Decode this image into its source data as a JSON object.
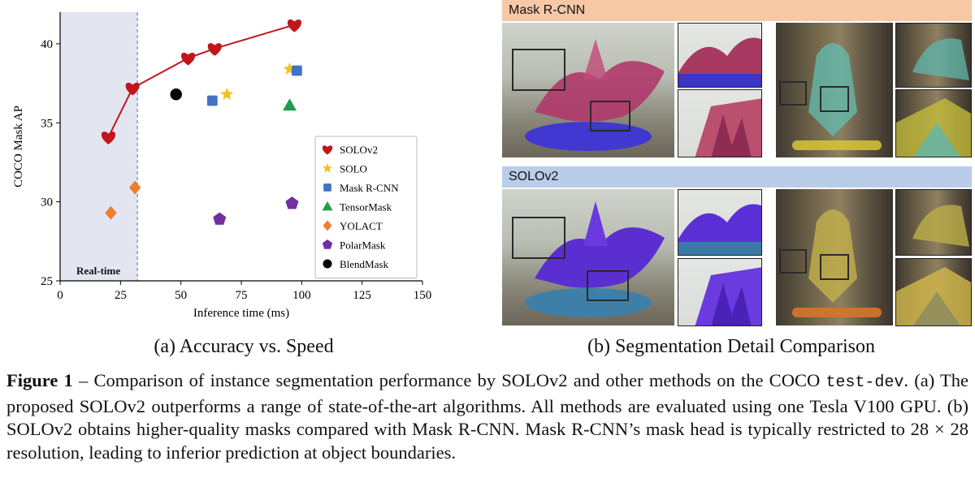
{
  "chart_data": {
    "type": "scatter",
    "xlabel": "Inference time (ms)",
    "ylabel": "COCO Mask AP",
    "xlim": [
      0,
      150
    ],
    "ylim": [
      25,
      42
    ],
    "xticks": [
      0,
      25,
      50,
      75,
      100,
      125,
      150
    ],
    "yticks": [
      25,
      30,
      35,
      40
    ],
    "realtime_region": {
      "label": "Real-time",
      "x_max": 32
    },
    "legend_position": "right",
    "series": [
      {
        "name": "SOLOv2",
        "marker": "heart",
        "color": "#c0161c",
        "connected": true,
        "points": [
          [
            20,
            34.1
          ],
          [
            30,
            37.2
          ],
          [
            53,
            39.1
          ],
          [
            64,
            39.7
          ],
          [
            97,
            41.2
          ]
        ]
      },
      {
        "name": "SOLO",
        "marker": "star",
        "color": "#f1c21b",
        "points": [
          [
            69,
            36.8
          ],
          [
            95,
            38.4
          ]
        ]
      },
      {
        "name": "Mask R-CNN",
        "marker": "square",
        "color": "#4472c4",
        "points": [
          [
            63,
            36.4
          ],
          [
            98,
            38.3
          ]
        ]
      },
      {
        "name": "TensorMask",
        "marker": "triangle",
        "color": "#1e9e4a",
        "points": [
          [
            95,
            36.1
          ]
        ]
      },
      {
        "name": "YOLACT",
        "marker": "diamond",
        "color": "#ed7d31",
        "points": [
          [
            21,
            29.3
          ],
          [
            31,
            30.9
          ]
        ]
      },
      {
        "name": "PolarMask",
        "marker": "pentagon",
        "color": "#7030a0",
        "points": [
          [
            66,
            28.9
          ],
          [
            96,
            29.9
          ]
        ]
      },
      {
        "name": "BlendMask",
        "marker": "circle",
        "color": "#000000",
        "points": [
          [
            48,
            36.8
          ]
        ]
      }
    ]
  },
  "subcaptions": {
    "a": "(a) Accuracy vs. Speed",
    "b": "(b) Segmentation Detail Comparison"
  },
  "panel_b": {
    "top_label": "Mask R-CNN",
    "bottom_label": "SOLOv2",
    "top_color": "#f6c8a6",
    "bottom_color": "#b9cde9"
  },
  "caption": {
    "label": "Figure 1",
    "dash": " – ",
    "text1": "Comparison of instance segmentation performance by SOLOv2 and other methods on the COCO ",
    "code": "test-dev",
    "text2": ". (a) The proposed SOLOv2 outperforms a range of state-of-the-art algorithms. All methods are evaluated using one Tesla V100 GPU. (b) SOLOv2 obtains higher-quality masks compared with Mask R-CNN. Mask R-CNN’s mask head is typically restricted to 28 × 28 resolution, leading to inferior prediction at object boundaries."
  }
}
